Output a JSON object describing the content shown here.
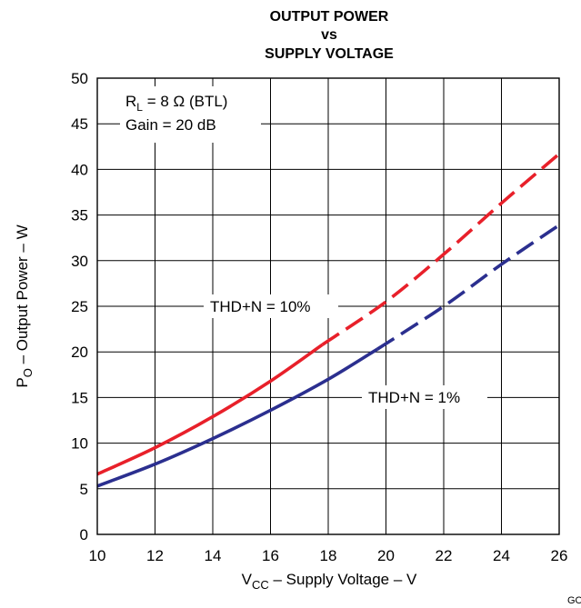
{
  "chart_data": {
    "type": "line",
    "title_lines": [
      "OUTPUT POWER",
      "vs",
      "SUPPLY VOLTAGE"
    ],
    "xlabel": {
      "main": "V",
      "sub": "CC",
      "rest": " – Supply Voltage – V"
    },
    "ylabel": {
      "main": "P",
      "sub": "O",
      "rest": " – Output Power – W"
    },
    "xlim": [
      10,
      26
    ],
    "ylim": [
      0,
      50
    ],
    "x_ticks": [
      10,
      12,
      14,
      16,
      18,
      20,
      22,
      24,
      26
    ],
    "y_ticks": [
      0,
      5,
      10,
      15,
      20,
      25,
      30,
      35,
      40,
      45,
      50
    ],
    "grid": true,
    "conditions": [
      {
        "main": "R",
        "sub": "L",
        "rest": " = 8 Ω (BTL)"
      },
      {
        "main": "Gain = 20 dB",
        "sub": "",
        "rest": ""
      }
    ],
    "series": [
      {
        "name": "THD+N = 10%",
        "color": "#e8202a",
        "solid": {
          "x": [
            10,
            12,
            14,
            16,
            17.8
          ],
          "y": [
            6.6,
            9.5,
            12.9,
            16.8,
            20.8
          ]
        },
        "dashed": {
          "x": [
            17.8,
            20,
            22,
            24,
            26
          ],
          "y": [
            20.8,
            25.5,
            30.7,
            36.3,
            41.7
          ]
        }
      },
      {
        "name": "THD+N = 1%",
        "color": "#2b2f8f",
        "solid": {
          "x": [
            10,
            12,
            14,
            16,
            18,
            19.7
          ],
          "y": [
            5.3,
            7.7,
            10.5,
            13.6,
            17.0,
            20.3
          ]
        },
        "dashed": {
          "x": [
            19.7,
            22,
            24,
            26
          ],
          "y": [
            20.3,
            25.0,
            29.6,
            33.9
          ]
        }
      }
    ],
    "figure_id": "GO"
  }
}
